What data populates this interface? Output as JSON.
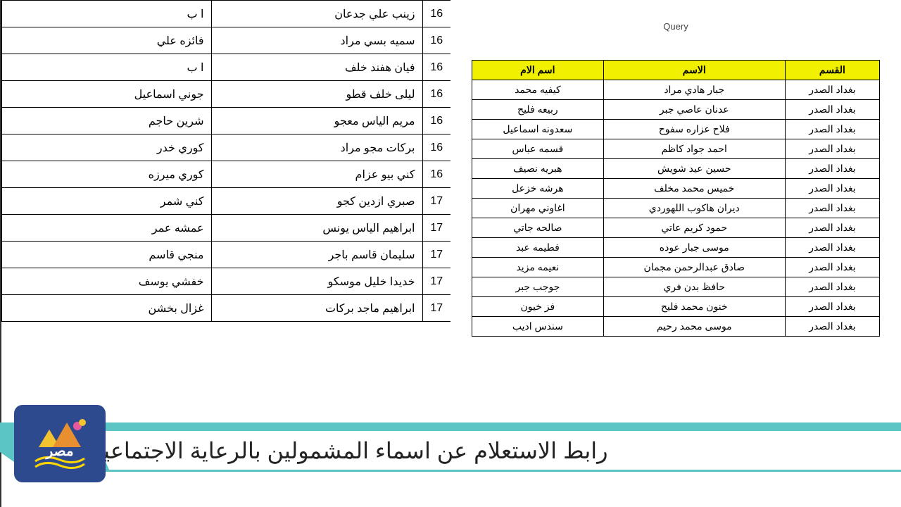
{
  "query_label": "Query",
  "left_table": {
    "header_bg": "#f0f000",
    "headers": [
      "القسم",
      "الاسم",
      "اسم الام"
    ],
    "rows": [
      [
        "بغداد الصدر",
        "جبار هادي مراد",
        "كيفيه محمد"
      ],
      [
        "بغداد الصدر",
        "عدنان عاصي جبر",
        "ربيعه فليح"
      ],
      [
        "بغداد الصدر",
        "فلاح عزاره سفوح",
        "سعدونه اسماعيل"
      ],
      [
        "بغداد الصدر",
        "احمد جواد كاظم",
        "قسمه عباس"
      ],
      [
        "بغداد الصدر",
        "حسين عيد شويش",
        "هبريه نصيف"
      ],
      [
        "بغداد الصدر",
        "خميس محمد مخلف",
        "هرشه خزعل"
      ],
      [
        "بغداد الصدر",
        "ديران هاكوب اللهوردي",
        "اغاوني مهران"
      ],
      [
        "بغداد الصدر",
        "حمود كريم عاتي",
        "صالحه جاتي"
      ],
      [
        "بغداد الصدر",
        "موسى جبار عوده",
        "فطيمه عبد"
      ],
      [
        "بغداد الصدر",
        "صادق عبدالرحمن مجمان",
        "نعيمه مزيد"
      ],
      [
        "بغداد الصدر",
        "حافظ بدن فري",
        "جوجب جبر"
      ],
      [
        "بغداد الصدر",
        "خنون محمد فليح",
        "فز خيون"
      ],
      [
        "بغداد الصدر",
        "موسى محمد رحيم",
        "سندس اديب"
      ]
    ]
  },
  "right_table": {
    "rows": [
      [
        "16",
        "زينب علي جدعان",
        "ا ب"
      ],
      [
        "16",
        "سميه بسي مراد",
        "فائزه علي"
      ],
      [
        "16",
        "فيان هفند خلف",
        "ا ب"
      ],
      [
        "16",
        "ليلى خلف قطو",
        "جوني اسماعيل"
      ],
      [
        "16",
        "مريم الياس معجو",
        "شرين حاجم"
      ],
      [
        "16",
        "بركات مجو مراد",
        "كوري خدر"
      ],
      [
        "16",
        "كني بيو عزام",
        "كوري ميرزه"
      ],
      [
        "17",
        "صبري ازدين كجو",
        "كني شمر"
      ],
      [
        "17",
        "ابراهيم الياس يونس",
        "عمشه عمر"
      ],
      [
        "17",
        "سليمان قاسم باجر",
        "منجي قاسم"
      ],
      [
        "17",
        "خديدا خليل موسكو",
        "خفشي يوسف"
      ],
      [
        "17",
        "ابراهيم ماجد بركات",
        "غزال بخشن"
      ]
    ]
  },
  "banner": {
    "text": "رابط الاستعلام عن اسماء المشمولين بالرعاية الاجتماعية",
    "bg_color": "#5bc4c4",
    "logo_bg": "#2e4a8f"
  }
}
